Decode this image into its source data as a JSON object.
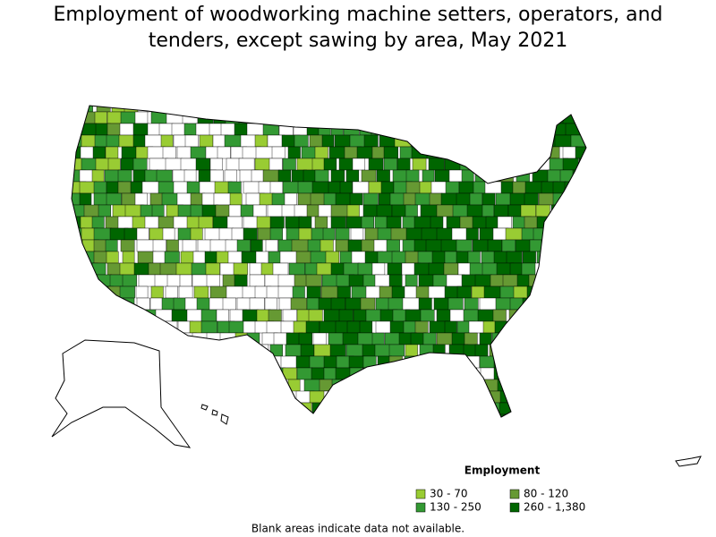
{
  "title": "Employment of woodworking machine setters, operators, and tenders, except sawing by area, May 2021",
  "legend": {
    "title": "Employment",
    "items": [
      {
        "label": "30 - 70",
        "color": "#99cc33"
      },
      {
        "label": "80 - 120",
        "color": "#669933"
      },
      {
        "label": "130 - 250",
        "color": "#339933"
      },
      {
        "label": "260 - 1,380",
        "color": "#006600"
      }
    ]
  },
  "note": "Blank areas indicate data not available."
}
